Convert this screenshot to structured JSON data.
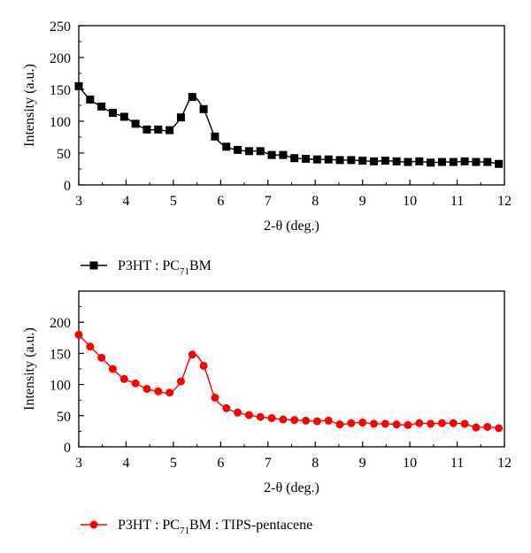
{
  "chart_data": [
    {
      "type": "line",
      "xlabel": "2-θ (deg.)",
      "ylabel": "Intensity (a.u.)",
      "xlim": [
        3,
        12
      ],
      "ylim": [
        0,
        250
      ],
      "x_ticks": [
        "3",
        "4",
        "5",
        "6",
        "7",
        "8",
        "9",
        "10",
        "11",
        "12"
      ],
      "y_ticks": [
        "0",
        "50",
        "100",
        "150",
        "200",
        "250"
      ],
      "legend_position": "below",
      "legend": {
        "prefix": "P3HT : PC",
        "subscript": "71",
        "suffix": "BM"
      },
      "color": "#000000",
      "marker": "square",
      "series": [
        {
          "name": "P3HT : PC71BM",
          "x": [
            3.0,
            3.24,
            3.48,
            3.72,
            3.96,
            4.2,
            4.44,
            4.68,
            4.92,
            5.16,
            5.4,
            5.64,
            5.88,
            6.12,
            6.36,
            6.6,
            6.84,
            7.08,
            7.32,
            7.56,
            7.8,
            8.04,
            8.28,
            8.52,
            8.76,
            9.0,
            9.24,
            9.48,
            9.72,
            9.96,
            10.2,
            10.44,
            10.68,
            10.92,
            11.16,
            11.4,
            11.64,
            11.88
          ],
          "values": [
            155,
            134,
            123,
            113,
            107,
            96,
            87,
            87,
            86,
            106,
            138,
            119,
            76,
            60,
            55,
            53,
            53,
            47,
            47,
            42,
            41,
            40,
            40,
            39,
            39,
            38,
            37,
            38,
            37,
            36,
            37,
            35,
            36,
            36,
            37,
            36,
            36,
            33
          ]
        }
      ]
    },
    {
      "type": "line",
      "xlabel": "2-θ (deg.)",
      "ylabel": "Intensity (a.u.)",
      "xlim": [
        3,
        12
      ],
      "ylim": [
        0,
        250
      ],
      "x_ticks": [
        "3",
        "4",
        "5",
        "6",
        "7",
        "8",
        "9",
        "10",
        "11",
        "12"
      ],
      "y_ticks": [
        "0",
        "50",
        "100",
        "150",
        "200"
      ],
      "legend_position": "below",
      "legend": {
        "prefix": "P3HT : PC",
        "subscript": "71",
        "suffix": "BM : TIPS-pentacene"
      },
      "color": "#ff0000",
      "marker": "circle",
      "series": [
        {
          "name": "P3HT : PC71BM : TIPS-pentacene",
          "x": [
            3.0,
            3.24,
            3.48,
            3.72,
            3.96,
            4.2,
            4.44,
            4.68,
            4.92,
            5.16,
            5.4,
            5.64,
            5.88,
            6.12,
            6.36,
            6.6,
            6.84,
            7.08,
            7.32,
            7.56,
            7.8,
            8.04,
            8.28,
            8.52,
            8.76,
            9.0,
            9.24,
            9.48,
            9.72,
            9.96,
            10.2,
            10.44,
            10.68,
            10.92,
            11.16,
            11.4,
            11.64,
            11.88
          ],
          "values": [
            180,
            161,
            143,
            125,
            109,
            102,
            93,
            89,
            87,
            105,
            148,
            130,
            79,
            62,
            55,
            51,
            48,
            46,
            44,
            43,
            42,
            41,
            42,
            36,
            38,
            39,
            37,
            37,
            36,
            35,
            38,
            37,
            38,
            38,
            37,
            31,
            32,
            30
          ]
        }
      ]
    }
  ]
}
